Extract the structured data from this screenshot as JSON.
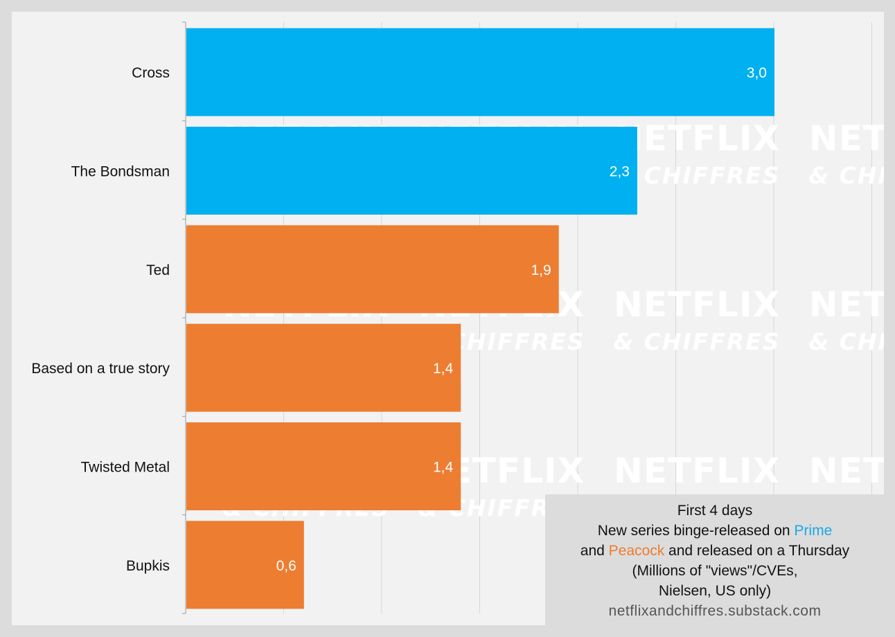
{
  "chart_data": {
    "type": "bar",
    "orientation": "horizontal",
    "categories": [
      "Cross",
      "The Bondsman",
      "Ted",
      "Based on a true story",
      "Twisted Metal",
      "Bupkis"
    ],
    "values": [
      3.0,
      2.3,
      1.9,
      1.4,
      1.4,
      0.6
    ],
    "value_labels": [
      "3,0",
      "2,3",
      "1,9",
      "1,4",
      "1,4",
      "0,6"
    ],
    "platform": [
      "Prime",
      "Prime",
      "Peacock",
      "Peacock",
      "Peacock",
      "Peacock"
    ],
    "colors": {
      "Prime": "#00b0f0",
      "Peacock": "#ed7d31"
    },
    "xlim": [
      0,
      3.5
    ],
    "grid": true,
    "watermark": [
      "NETFLIX",
      "& CHIFFRES"
    ]
  },
  "note": {
    "line1": "First 4 days",
    "line2_pre": "New series binge-released on ",
    "prime": "Prime",
    "line3_pre": "and ",
    "peacock": "Peacock",
    "line3_post": " and released on a Thursday",
    "line4": "(Millions of \"views\"/CVEs,",
    "line5": "Nielsen, US only)",
    "source": "netflixandchiffres.substack.com"
  }
}
